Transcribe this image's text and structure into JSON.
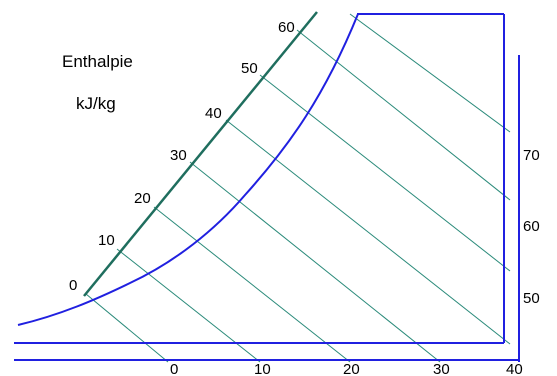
{
  "diagram": {
    "title": "Enthalpie",
    "unit": "kJ/kg",
    "diagonal_scale_labels": [
      "0",
      "10",
      "20",
      "30",
      "40",
      "50",
      "60"
    ],
    "bottom_scale_labels": [
      "0",
      "10",
      "20",
      "30",
      "40"
    ],
    "right_scale_labels": [
      "50",
      "60",
      "70"
    ],
    "colors": {
      "frame_line": "#2020e0",
      "isenthalp_line": "#2a8a7a",
      "diagonal_scale_line": "#1f6e5e",
      "text": "#000000"
    }
  }
}
